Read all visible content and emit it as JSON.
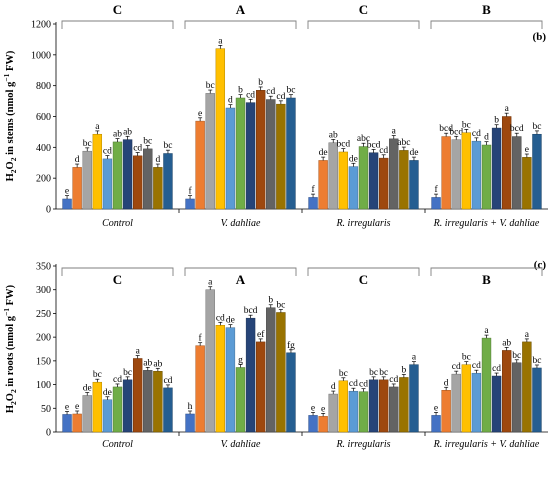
{
  "palette": [
    "#4472C4",
    "#ED7D31",
    "#A5A5A5",
    "#FFC000",
    "#5B9BD5",
    "#70AD47",
    "#264478",
    "#9E480E",
    "#636363",
    "#997300",
    "#255E91",
    "#43682B"
  ],
  "chart_data": [
    {
      "type": "bar",
      "panel": "(b)",
      "ylabel_parts": [
        "H",
        "2",
        "O",
        "2",
        " in stems (nmol g",
        "−1",
        " FW)"
      ],
      "ylim": [
        0,
        1200
      ],
      "yticks": [
        0,
        200,
        400,
        600,
        800,
        1000,
        1200
      ],
      "grid": false,
      "groups": [
        {
          "name": "Control",
          "big_letter": "C",
          "values": [
            65,
            270,
            375,
            485,
            325,
            435,
            450,
            345,
            390,
            270,
            360
          ],
          "letters": [
            "e",
            "d",
            "bc",
            "a",
            "cd",
            "ab",
            "ab",
            "cd",
            "bc",
            "d",
            "bc"
          ]
        },
        {
          "name": "V. dahliae",
          "big_letter": "A",
          "values": [
            65,
            570,
            750,
            1040,
            655,
            720,
            690,
            770,
            710,
            680,
            720
          ],
          "letters": [
            "f",
            "e",
            "bc",
            "a",
            "d",
            "b",
            "cd",
            "b",
            "cd",
            "cd",
            "bc"
          ]
        },
        {
          "name": "R. irregularis",
          "big_letter": "C",
          "values": [
            75,
            315,
            430,
            370,
            275,
            405,
            365,
            330,
            455,
            380,
            315
          ],
          "letters": [
            "f",
            "de",
            "ab",
            "bcd",
            "de",
            "abc",
            "bcd",
            "cd",
            "a",
            "abc",
            "de"
          ]
        },
        {
          "name": "R. irregularis + V. dahliae",
          "big_letter": "B",
          "values": [
            75,
            470,
            450,
            495,
            440,
            415,
            525,
            600,
            470,
            335,
            485
          ],
          "letters": [
            "f",
            "bcd",
            "bcd",
            "bc",
            "cd",
            "d",
            "b",
            "a",
            "bcd",
            "e",
            "bc"
          ]
        }
      ]
    },
    {
      "type": "bar",
      "panel": "(c)",
      "ylabel_parts": [
        "H",
        "2",
        "O",
        "2",
        " in roots (nmol g",
        "−1",
        " FW)"
      ],
      "ylim": [
        0,
        350
      ],
      "yticks": [
        0,
        50,
        100,
        150,
        200,
        250,
        300,
        350
      ],
      "grid": false,
      "groups": [
        {
          "name": "Control",
          "big_letter": "C",
          "values": [
            37,
            38,
            77,
            105,
            68,
            95,
            110,
            155,
            130,
            128,
            93
          ],
          "letters": [
            "e",
            "e",
            "de",
            "bc",
            "de",
            "cd",
            "bc",
            "a",
            "ab",
            "ab",
            "cd"
          ]
        },
        {
          "name": "V. dahliae",
          "big_letter": "A",
          "values": [
            38,
            182,
            300,
            225,
            220,
            136,
            240,
            190,
            262,
            252,
            167
          ],
          "letters": [
            "h",
            "f",
            "a",
            "cd",
            "de",
            "g",
            "bcd",
            "ef",
            "b",
            "bc",
            "fg"
          ]
        },
        {
          "name": "R. irregularis",
          "big_letter": "C",
          "values": [
            35,
            33,
            80,
            108,
            86,
            85,
            110,
            110,
            95,
            115,
            142
          ],
          "letters": [
            "e",
            "e",
            "d",
            "bc",
            "cd",
            "cd",
            "bc",
            "bc",
            "cd",
            "b",
            "a"
          ]
        },
        {
          "name": "R. irregularis + V. dahliae",
          "big_letter": "B",
          "values": [
            35,
            88,
            122,
            142,
            124,
            198,
            118,
            172,
            146,
            190,
            135
          ],
          "letters": [
            "e",
            "d",
            "cd",
            "bc",
            "cd",
            "a",
            "cd",
            "ab",
            "bc",
            "a",
            "bc"
          ]
        }
      ]
    }
  ]
}
